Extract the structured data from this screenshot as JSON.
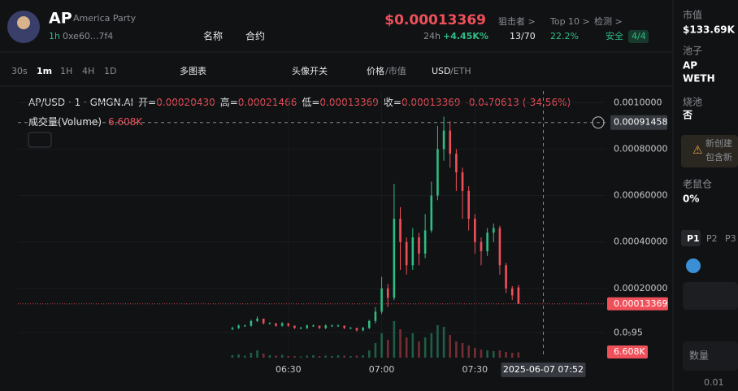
{
  "header": {
    "symbol": "AP",
    "name": "America Party",
    "age": "1h",
    "address": "0xe60...7f4",
    "name_btn": "名称",
    "contract_btn": "合约",
    "price": "$0.00013369",
    "change_label": "24h",
    "change": "+4.45K%",
    "snipers_label": "狙击者 >",
    "snipers": "13/70",
    "top10_label": "Top 10 >",
    "top10": "22.2%",
    "check_label": "检测 >",
    "safe": "安全",
    "safe_score": "4/4"
  },
  "toolbar": {
    "intervals": [
      "30s",
      "1m",
      "1H",
      "4H",
      "1D"
    ],
    "multi": "多图表",
    "avatar": "头像开关",
    "price": "价格",
    "mcap": "/市值",
    "usd": "USD",
    "eth": "/ETH"
  },
  "sidebar": {
    "mcap_label": "市值",
    "mcap": "$133.69K",
    "pool_label": "池子",
    "pool_a": "AP",
    "pool_b": "WETH",
    "burn_label": "烧池",
    "burn": "否",
    "warn_1": "新创建",
    "warn_2": "包含新",
    "rat_label": "老鼠仓",
    "rat": "0%",
    "tabs": [
      "P1",
      "P2",
      "P3"
    ],
    "amount_label": "数量",
    "amount": "0.01"
  },
  "chart_data": {
    "type": "candlestick",
    "title": "AP/USD · 1 · GMGN.AI",
    "legend": [
      {
        "label": "开=",
        "value": "0.00020430"
      },
      {
        "label": "高=",
        "value": "0.00021466"
      },
      {
        "label": "低=",
        "value": "0.00013369"
      },
      {
        "label": "收=",
        "value": "0.00013369"
      }
    ],
    "change": "-0.0₄70613 (-34.56%)",
    "volume_title": "成交量(Volume)",
    "volume_value": "6.608K",
    "up_color": "#2ebd85",
    "down_color": "#f0505a",
    "x": [
      12,
      14,
      16,
      18,
      20,
      22,
      24,
      26,
      28,
      30,
      32,
      34,
      36,
      38,
      40,
      42,
      44,
      46,
      48,
      50,
      52,
      54,
      56,
      58,
      60,
      62,
      64,
      66,
      68,
      70,
      72,
      74,
      76,
      78,
      80,
      82,
      84,
      86,
      88,
      90,
      92,
      94,
      96,
      98,
      100,
      102,
      104
    ],
    "open": [
      2.5e-05,
      3e-05,
      4e-05,
      4e-05,
      6e-05,
      7e-05,
      5e-05,
      5e-05,
      4e-05,
      5e-05,
      4e-05,
      3e-05,
      3e-05,
      4e-05,
      4e-05,
      3e-05,
      4e-05,
      4e-05,
      4e-05,
      3e-05,
      3e-05,
      2e-05,
      3e-05,
      6e-05,
      0.0001,
      0.0002,
      0.00016,
      0.0005,
      0.0004,
      0.0003,
      0.00042,
      0.00035,
      0.00045,
      0.0006,
      0.0008,
      0.00088,
      0.00078,
      0.0007,
      0.00062,
      0.0005,
      0.0004,
      0.00036,
      0.00044,
      0.00046,
      0.0003,
      0.0002,
      0.0002043
    ],
    "high": [
      3.5e-05,
      4.5e-05,
      4.5e-05,
      6.5e-05,
      8e-05,
      7e-05,
      5.5e-05,
      5e-05,
      5.5e-05,
      5e-05,
      4e-05,
      3.5e-05,
      4.5e-05,
      4.5e-05,
      4e-05,
      4.5e-05,
      4.5e-05,
      4.5e-05,
      4e-05,
      3.5e-05,
      3e-05,
      3.5e-05,
      6.5e-05,
      0.00012,
      0.00025,
      0.00022,
      0.00065,
      0.00055,
      0.00042,
      0.00046,
      0.00044,
      0.00052,
      0.00066,
      0.0009,
      0.00094,
      0.00092,
      0.0008,
      0.00072,
      0.00064,
      0.00052,
      0.00042,
      0.00046,
      0.00048,
      0.00047,
      0.00031,
      0.00021,
      0.00021466
    ],
    "low": [
      2e-05,
      2.5e-05,
      3.5e-05,
      3.5e-05,
      5.5e-05,
      4.5e-05,
      4.5e-05,
      3.5e-05,
      3.5e-05,
      3.5e-05,
      2.5e-05,
      2.5e-05,
      2.5e-05,
      3.5e-05,
      2.5e-05,
      2.5e-05,
      3.5e-05,
      3.5e-05,
      2.5e-05,
      2.5e-05,
      1.5e-05,
      1.5e-05,
      2.5e-05,
      5e-05,
      9e-05,
      0.00012,
      0.00015,
      0.00028,
      0.00026,
      0.00028,
      0.0003,
      0.00033,
      0.00044,
      0.00058,
      0.00075,
      0.00072,
      0.00062,
      0.0005,
      0.00045,
      0.00035,
      0.0003,
      0.00034,
      0.0004,
      0.00026,
      0.00018,
      0.00015,
      0.00013369
    ],
    "close": [
      3e-05,
      4e-05,
      4e-05,
      6e-05,
      7e-05,
      5e-05,
      5e-05,
      4e-05,
      5e-05,
      4e-05,
      3e-05,
      3e-05,
      4e-05,
      4e-05,
      3e-05,
      4e-05,
      4e-05,
      4e-05,
      3e-05,
      3e-05,
      2e-05,
      3e-05,
      6e-05,
      0.0001,
      0.0002,
      0.00016,
      0.0005,
      0.0004,
      0.0003,
      0.00042,
      0.00035,
      0.00045,
      0.0006,
      0.0008,
      0.00088,
      0.00078,
      0.0007,
      0.00062,
      0.0005,
      0.0004,
      0.00036,
      0.00044,
      0.00046,
      0.0003,
      0.0002,
      0.00017,
      0.00013369
    ],
    "volume": [
      3000,
      4000,
      2500,
      6000,
      9000,
      5000,
      3000,
      2500,
      3500,
      2000,
      2000,
      1500,
      2500,
      3000,
      2000,
      2500,
      2000,
      3000,
      2500,
      2000,
      2500,
      3000,
      9000,
      18000,
      30000,
      22000,
      45000,
      35000,
      25000,
      30000,
      20000,
      25000,
      30000,
      40000,
      38000,
      28000,
      20000,
      18000,
      15000,
      12000,
      10000,
      9000,
      8000,
      9000,
      7000,
      6000,
      6608
    ],
    "xlim": [
      -57,
      132
    ],
    "xticks": [
      {
        "value": 30,
        "label": "06:30"
      },
      {
        "value": 60,
        "label": "07:00"
      },
      {
        "value": 90,
        "label": "07:30"
      }
    ],
    "ylim": [
      -9.8e-05,
      0.00105
    ],
    "yticks": [
      {
        "value": 9.5e-06,
        "label": "0.0₅95"
      },
      {
        "value": 0.0002,
        "label": "0.00020000"
      },
      {
        "value": 0.0004,
        "label": "0.00040000"
      },
      {
        "value": 0.0006,
        "label": "0.00060000"
      },
      {
        "value": 0.0008,
        "label": "0.00080000"
      },
      {
        "value": 0.001,
        "label": "0.0010000"
      }
    ],
    "grid": true,
    "last_price": {
      "value": 0.00013369,
      "label": "0.00013369"
    },
    "crosshair_price": {
      "value": 0.00091458,
      "label": "0.00091458"
    },
    "crosshair_time": {
      "value": 112,
      "label": "2025-06-07 07:52"
    }
  }
}
